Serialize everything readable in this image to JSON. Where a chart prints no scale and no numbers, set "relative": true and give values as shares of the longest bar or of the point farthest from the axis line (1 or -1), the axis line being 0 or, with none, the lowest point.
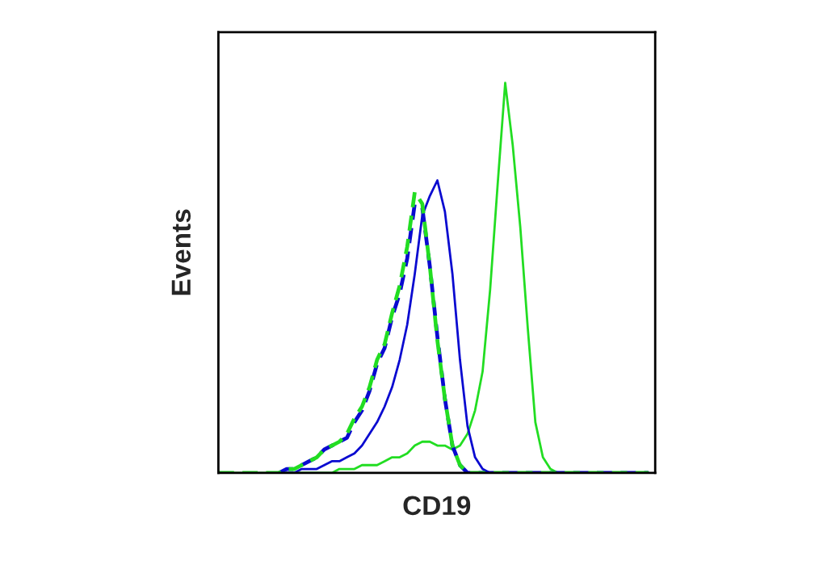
{
  "chart_data": {
    "type": "line",
    "relative": true,
    "xlabel": "CD19",
    "ylabel": "Events",
    "legend": false,
    "marker": "none",
    "categories": [
      null,
      null,
      null,
      null,
      null,
      null,
      null,
      null,
      null,
      null,
      null,
      null,
      null,
      null,
      null,
      null,
      null,
      null,
      null,
      null,
      null,
      null,
      null,
      null,
      null,
      null,
      null,
      null,
      null,
      null,
      null,
      null,
      null,
      null,
      null,
      null,
      null,
      null,
      null,
      null,
      null,
      null,
      null,
      null,
      null,
      null,
      null,
      null,
      null,
      null,
      null,
      null,
      null,
      null,
      null,
      null,
      null,
      null
    ],
    "series": [
      {
        "color": "#22dd22",
        "line_style": "solid",
        "values": [
          0,
          0,
          0,
          0,
          0,
          0,
          0,
          0,
          0,
          0,
          0,
          0,
          0,
          0,
          0,
          0,
          0.01,
          0.01,
          0.01,
          0.02,
          0.02,
          0.02,
          0.03,
          0.04,
          0.04,
          0.05,
          0.07,
          0.08,
          0.08,
          0.07,
          0.07,
          0.06,
          0.07,
          0.1,
          0.16,
          0.26,
          0.47,
          0.74,
          1,
          0.84,
          0.63,
          0.37,
          0.13,
          0.04,
          0.01,
          0,
          0,
          0,
          0,
          0,
          0,
          0,
          0,
          0,
          0,
          0,
          0,
          0
        ]
      },
      {
        "color": "#0a0ad0",
        "line_style": "solid",
        "values": [
          null,
          null,
          null,
          null,
          null,
          null,
          null,
          null,
          null,
          0,
          0,
          0.01,
          0.01,
          0.01,
          0.02,
          0.03,
          0.03,
          0.04,
          0.05,
          0.07,
          0.1,
          0.13,
          0.17,
          0.22,
          0.29,
          0.38,
          0.51,
          0.66,
          0.71,
          0.75,
          0.67,
          0.51,
          0.29,
          0.12,
          0.04,
          0.01,
          0,
          0,
          0,
          0,
          0,
          0,
          0,
          0,
          0,
          0,
          0,
          0,
          0,
          0,
          0,
          0,
          0,
          0,
          0,
          0,
          0,
          0
        ]
      },
      {
        "color": "#0a0ad0",
        "line_style": "dashed",
        "values": [
          null,
          null,
          null,
          null,
          null,
          null,
          null,
          null,
          0,
          0.01,
          0.01,
          0.02,
          0.03,
          0.04,
          0.06,
          0.07,
          0.08,
          0.09,
          0.13,
          0.16,
          0.21,
          0.28,
          0.32,
          0.4,
          0.46,
          0.55,
          0.69,
          0.68,
          0.53,
          0.35,
          0.19,
          0.07,
          0.02,
          0,
          0,
          0,
          0,
          0,
          0,
          0,
          0,
          0,
          0,
          0,
          0,
          0,
          0,
          0,
          0,
          0,
          0,
          0,
          0,
          0,
          0,
          0,
          0,
          0
        ]
      },
      {
        "color": "#22dd22",
        "line_style": "dashed",
        "values": [
          0,
          0,
          0,
          0,
          0,
          0,
          0,
          0,
          0,
          0.01,
          0.01,
          0.02,
          0.03,
          0.04,
          0.06,
          0.07,
          0.08,
          0.1,
          0.14,
          0.17,
          0.22,
          0.29,
          0.33,
          0.41,
          0.48,
          0.58,
          0.72,
          0.69,
          0.53,
          0.34,
          0.19,
          0.07,
          0.02,
          0,
          0,
          0,
          0,
          0,
          0,
          0,
          0,
          0,
          0,
          0,
          0,
          0,
          0,
          0,
          0,
          0,
          0,
          0,
          0,
          0,
          0,
          0,
          0,
          0
        ]
      }
    ]
  }
}
